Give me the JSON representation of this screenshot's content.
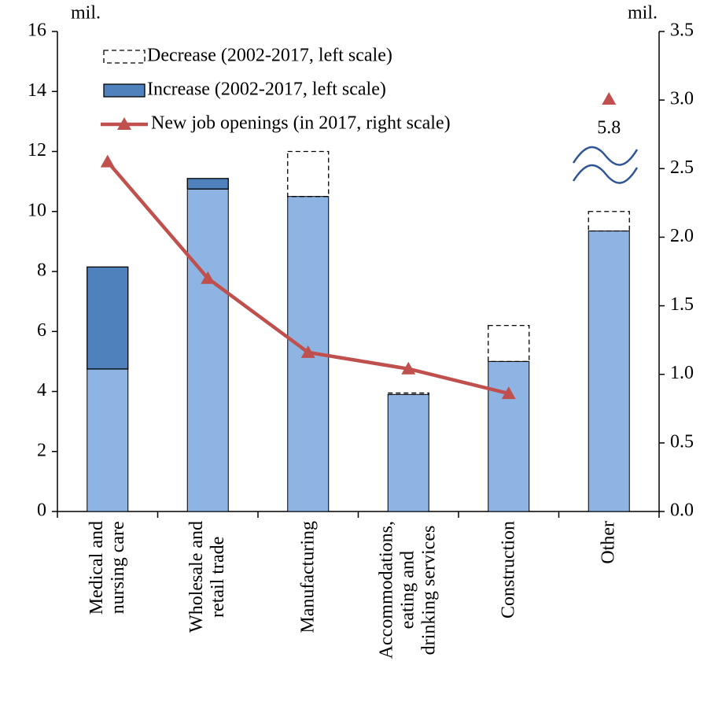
{
  "chart_data": {
    "type": "bar",
    "y_unit": "mil.",
    "y2_unit": "mil.",
    "categories": [
      "Medical and\nnursing care",
      "Wholesale and\nretail trade",
      "Manufacturing",
      "Accommodations,\neating and\ndrinking services",
      "Construction",
      "Other"
    ],
    "series": [
      {
        "color": "#8eb4e3",
        "values": [
          4.75,
          10.75,
          10.5,
          3.9,
          5.0,
          9.35
        ]
      },
      {
        "name": "Increase (2002-2017, left scale)",
        "color": "#4f81bd",
        "values": [
          3.4,
          0.35,
          null,
          null,
          null,
          null
        ]
      },
      {
        "name": "Decrease (2002-2017, left scale)",
        "color": "none",
        "values": [
          null,
          null,
          1.5,
          0.05,
          1.2,
          0.65
        ]
      },
      {
        "name": "New job openings (in 2017, right scale)",
        "color": "#c0504d",
        "axis": "y2",
        "values": [
          2.55,
          1.7,
          1.16,
          1.04,
          0.86,
          null
        ]
      }
    ],
    "off_scale_point": {
      "category": 5,
      "value": 5.8
    },
    "ylim": [
      0,
      16
    ],
    "yticks": [
      0,
      2,
      4,
      6,
      8,
      10,
      12,
      14,
      16
    ],
    "y2lim": [
      0,
      3.5
    ],
    "y2ticks": [
      {
        "value": 0,
        "label": "0.0"
      },
      {
        "value": 0.5,
        "label": "0.5"
      },
      {
        "value": 1,
        "label": "1.0"
      },
      {
        "value": 1.5,
        "label": "1.5"
      },
      {
        "value": 2,
        "label": "2.0"
      },
      {
        "value": 2.5,
        "label": "2.5"
      },
      {
        "value": 3,
        "label": "3.0"
      },
      {
        "value": 3.5,
        "label": "3.5"
      }
    ],
    "legend": "top-left",
    "grid": false
  }
}
